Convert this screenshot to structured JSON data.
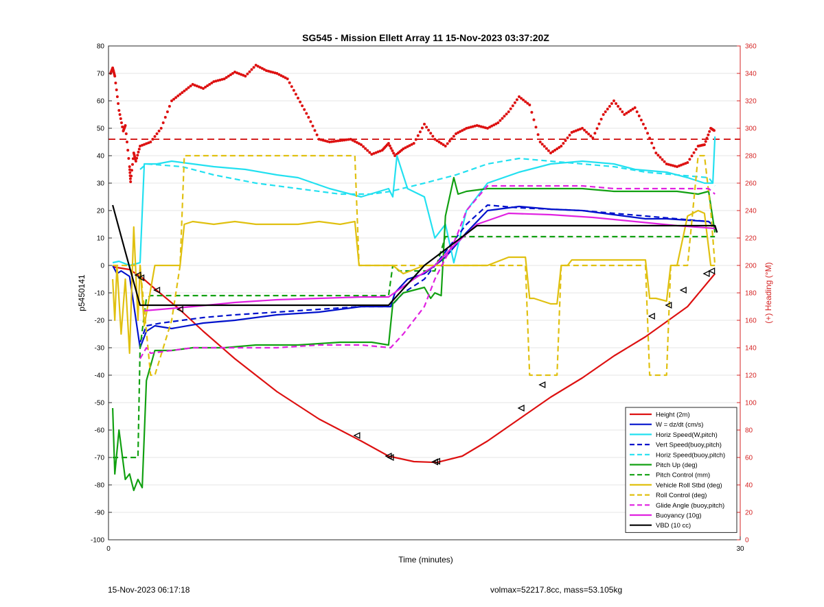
{
  "footer": {
    "left": "15-Nov-2023 06:17:18",
    "right": "volmax=52217.8cc, mass=53.105kg"
  },
  "colors": {
    "height": "#dd1111",
    "w": "#0011cc",
    "horiz": "#22e0f0",
    "pitch": "#11a011",
    "roll": "#e0c010",
    "glide": "#e020e0",
    "vbd": "#000000",
    "heading_axis": "#d42020"
  },
  "chart_data": {
    "type": "line",
    "title": "SG545 - Mission Ellett Array 11 15-Nov-2023 03:37:20Z",
    "xlabel": "Time (minutes)",
    "ylabel": "p5450141",
    "y2label": "(+) Heading (°M)",
    "xlim": [
      0,
      30
    ],
    "ylim": [
      -100,
      80
    ],
    "y2lim": [
      0,
      360
    ],
    "xticks": [
      0,
      30
    ],
    "yticks": [
      -100,
      -90,
      -80,
      -70,
      -60,
      -50,
      -40,
      -30,
      -20,
      -10,
      0,
      10,
      20,
      30,
      40,
      50,
      60,
      70,
      80
    ],
    "y2ticks": [
      0,
      20,
      40,
      60,
      80,
      100,
      120,
      140,
      160,
      180,
      200,
      220,
      240,
      260,
      280,
      300,
      320,
      340,
      360
    ],
    "grid": true,
    "legend_position": "bottom-right",
    "series": [
      {
        "name": "Height (2m)",
        "key": "height",
        "style": "solid",
        "x": [
          0.2,
          1.0,
          1.6,
          2.2,
          3.3,
          4.5,
          6.0,
          8.0,
          10.0,
          12.0,
          13.3,
          14.5,
          15.6,
          16.8,
          18.0,
          19.5,
          21.0,
          22.5,
          24.0,
          25.5,
          26.5,
          27.5,
          28.8
        ],
        "y": [
          -0.5,
          -1.5,
          -4.5,
          -8.5,
          -15.5,
          -24,
          -34,
          -46,
          -56,
          -64,
          -69.5,
          -71.5,
          -71.8,
          -69.5,
          -64,
          -56,
          -48,
          -41,
          -33,
          -26,
          -20.5,
          -15,
          -3
        ]
      },
      {
        "name": "W = dz/dt (cm/s)",
        "key": "w",
        "style": "solid",
        "x": [
          0.2,
          0.4,
          0.6,
          1.0,
          1.5,
          1.8,
          2.2,
          3.0,
          4.5,
          6.0,
          8.0,
          10.0,
          11.0,
          12.0,
          13.4,
          13.6,
          14.2,
          15.0,
          16.0,
          17.0,
          18.0,
          19.5,
          21.0,
          22.5,
          24.0,
          25.5,
          26.5,
          27.5,
          28.5,
          28.8
        ],
        "y": [
          0,
          -3,
          -2,
          -4,
          -30,
          -24,
          -22,
          -23,
          -21,
          -20,
          -18,
          -17,
          -16,
          -15,
          -15,
          -10,
          -5,
          -3,
          3,
          12,
          20,
          21.5,
          20.5,
          20,
          18.5,
          17,
          17,
          16.5,
          16,
          14
        ]
      },
      {
        "name": "Horiz Speed(W,pitch)",
        "key": "horiz",
        "style": "solid",
        "x": [
          0.2,
          0.5,
          1.0,
          1.5,
          1.7,
          2.3,
          3.0,
          4.0,
          5.0,
          6.5,
          8.0,
          9.0,
          10.5,
          11.5,
          12.0,
          13.3,
          13.5,
          13.7,
          14.2,
          15.0,
          15.5,
          16.0,
          16.4,
          17.0,
          18.0,
          19.5,
          21.0,
          22.5,
          24.0,
          25.0,
          26.5,
          27.5,
          28.3,
          28.7,
          28.8
        ],
        "y": [
          1,
          1.5,
          0,
          1,
          37,
          37,
          38,
          37,
          36,
          35,
          33,
          32,
          28,
          26,
          25,
          28,
          25,
          40,
          28,
          25,
          10,
          15,
          1,
          20,
          30,
          34,
          37,
          38,
          37,
          35,
          34,
          32,
          30,
          30,
          47
        ]
      },
      {
        "name": "Vert Speed(buoy,pitch)",
        "key": "w",
        "style": "dash",
        "x": [
          1.5,
          1.8,
          2.5,
          3.5,
          4.5,
          6.0,
          8.0,
          10.0,
          12.0,
          13.4,
          14.0,
          15.0,
          16.0,
          17.0,
          18.0,
          19.5,
          21.0,
          22.5,
          24.0,
          25.5,
          27.0,
          28.5,
          28.8
        ],
        "y": [
          -28,
          -22,
          -21,
          -20,
          -19,
          -18,
          -17,
          -16,
          -15,
          -15,
          -10,
          -5,
          5,
          15,
          22,
          21,
          20.5,
          20,
          19,
          18,
          17,
          16,
          14
        ]
      },
      {
        "name": "Horiz Speed(buoy,pitch)",
        "key": "horiz",
        "style": "dash",
        "x": [
          1.5,
          1.8,
          3.5,
          5.0,
          7.0,
          9.0,
          11.0,
          12.5,
          13.4,
          15.0,
          16.5,
          18.0,
          19.5,
          21.0,
          22.5,
          24.0,
          25.5,
          27.0,
          28.5,
          28.8
        ],
        "y": [
          35,
          37,
          36,
          33,
          30,
          28,
          26,
          26,
          27,
          30,
          33,
          37,
          39,
          38,
          37,
          36,
          34,
          33,
          32,
          29
        ]
      },
      {
        "name": "Pitch Up (deg)",
        "key": "pitch",
        "style": "solid",
        "x": [
          0.2,
          0.3,
          0.5,
          0.8,
          1.0,
          1.2,
          1.4,
          1.6,
          1.8,
          2.2,
          3.0,
          4.0,
          5.5,
          7.0,
          9.0,
          11.0,
          12.5,
          13.3,
          13.5,
          14.0,
          15.0,
          15.3,
          15.5,
          15.8,
          16.0,
          16.4,
          16.6,
          17.0,
          18.0,
          19.5,
          21.0,
          22.5,
          24.0,
          25.5,
          27.0,
          28.0,
          28.5,
          28.8
        ],
        "y": [
          -52,
          -76,
          -60,
          -78,
          -76,
          -82,
          -78,
          -81,
          -42,
          -31,
          -31,
          -30,
          -30,
          -29,
          -29,
          -28,
          -28,
          -29,
          -14,
          -10,
          -8,
          -12,
          -10,
          -11,
          18,
          32,
          26,
          27,
          28,
          28,
          28,
          28,
          27,
          27,
          27,
          26,
          27,
          12
        ]
      },
      {
        "name": "Pitch Control (mm)",
        "key": "pitch",
        "style": "dash",
        "x": [
          0.2,
          1.4,
          1.5,
          1.8,
          2.0,
          13.3,
          13.5,
          13.8,
          15.5,
          16.0,
          16.4,
          19.0,
          22.0,
          25.0,
          28.0,
          28.8
        ],
        "y": [
          -70,
          -70,
          -30,
          -12,
          -11,
          -11,
          0,
          -2,
          -2,
          10.5,
          10.5,
          10.5,
          10.5,
          10.5,
          10.5,
          10.5
        ]
      },
      {
        "name": "Vehicle Roll Stbd (deg)",
        "key": "roll",
        "style": "solid",
        "x": [
          0.2,
          0.3,
          0.4,
          0.6,
          0.8,
          1.0,
          1.2,
          1.4,
          1.5,
          1.7,
          2.2,
          2.5,
          3.0,
          3.4,
          3.6,
          4.0,
          5.0,
          6.0,
          7.0,
          8.0,
          9.0,
          10.0,
          11.0,
          11.7,
          11.9,
          12.5,
          13.5,
          14.0,
          15.0,
          16.0,
          17.0,
          18.0,
          19.0,
          19.8,
          20.0,
          20.2,
          21.0,
          21.3,
          21.5,
          21.8,
          22.0,
          22.5,
          23.0,
          24.0,
          25.0,
          25.5,
          25.7,
          26.0,
          26.5,
          26.7,
          27.0,
          27.5,
          28.0,
          28.3,
          28.6,
          28.8
        ],
        "y": [
          -5,
          -20,
          0,
          -25,
          -5,
          -32,
          14,
          -20,
          0,
          -22,
          0,
          0,
          0,
          0,
          15,
          16,
          15,
          16,
          15,
          15,
          15,
          16,
          15,
          16,
          0,
          0,
          0,
          -3,
          0,
          0,
          0,
          0,
          3,
          3,
          -12,
          -12,
          -14,
          -14,
          0,
          0,
          2,
          2,
          2,
          2,
          2,
          2,
          -12,
          -12,
          -13,
          0,
          0,
          18,
          20,
          19,
          0,
          0
        ]
      },
      {
        "name": "Roll Control (deg)",
        "key": "roll",
        "style": "dash",
        "x": [
          0.2,
          1.0,
          1.5,
          2.0,
          2.2,
          3.0,
          3.4,
          3.6,
          5.0,
          8.0,
          11.0,
          11.7,
          11.9,
          12.5,
          13.5,
          14.0,
          15.0,
          16.0,
          17.0,
          18.0,
          19.0,
          19.8,
          20.0,
          20.2,
          21.0,
          21.3,
          21.5,
          21.8,
          22.0,
          22.5,
          23.0,
          24.0,
          25.0,
          25.5,
          25.7,
          26.0,
          26.5,
          26.7,
          27.0,
          27.5,
          28.0,
          28.3,
          28.6,
          28.8
        ],
        "y": [
          0,
          0,
          0,
          -40,
          -40,
          -20,
          0,
          40,
          40,
          40,
          40,
          40,
          0,
          0,
          0,
          0,
          0,
          0,
          0,
          0,
          0,
          0,
          -40,
          -40,
          -40,
          -40,
          0,
          0,
          0,
          0,
          0,
          0,
          0,
          0,
          -40,
          -40,
          -40,
          0,
          0,
          0,
          40,
          40,
          20,
          0
        ]
      },
      {
        "name": "Glide Angle (buoy,pitch)",
        "key": "glide",
        "style": "dash",
        "x": [
          1.5,
          1.8,
          2.0,
          3.0,
          4.0,
          6.0,
          8.0,
          10.0,
          12.0,
          13.4,
          14.0,
          15.0,
          15.5,
          16.5,
          17.0,
          18.0,
          19.5,
          21.0,
          22.5,
          24.0,
          25.5,
          27.0,
          28.5,
          28.8
        ],
        "y": [
          -34,
          -30,
          -32,
          -31,
          -30,
          -30,
          -30,
          -29,
          -29,
          -30,
          -25,
          -15,
          -5,
          10,
          20,
          29,
          29,
          29,
          29,
          28,
          28,
          28,
          28,
          26
        ]
      },
      {
        "name": "Buoyancy (10g)",
        "key": "glide",
        "style": "solid",
        "x": [
          1.7,
          2.5,
          4.0,
          6.0,
          8.0,
          10.0,
          12.0,
          13.3,
          14.5,
          15.5,
          16.5,
          17.5,
          19.0,
          21.0,
          23.0,
          25.0,
          27.0,
          28.8
        ],
        "y": [
          -16.5,
          -16,
          -15,
          -13.5,
          -12.5,
          -12,
          -11.5,
          -11.5,
          -5,
          0,
          8,
          15,
          19,
          18.5,
          17.5,
          16,
          14.5,
          13.5
        ]
      },
      {
        "name": "VBD (10 cc)",
        "key": "vbd",
        "style": "solid",
        "x": [
          0.2,
          0.8,
          1.5,
          3.0,
          5.0,
          8.0,
          11.0,
          13.3,
          15.0,
          17.5,
          20.0,
          23.0,
          26.0,
          28.8,
          28.9
        ],
        "y": [
          22,
          5,
          -14.5,
          -14.5,
          -14.5,
          -14.5,
          -14.5,
          -14.5,
          0,
          14.5,
          14.5,
          14.5,
          14.5,
          14.5,
          12
        ]
      }
    ],
    "triangle_markers": {
      "x": [
        1.4,
        1.55,
        2.3,
        3.4,
        11.8,
        13.3,
        13.4,
        15.5,
        15.6,
        19.6,
        20.6,
        25.8,
        26.6,
        27.3,
        28.4,
        28.65
      ],
      "y": [
        -3.5,
        -4.5,
        -9,
        -16,
        -62,
        -69.5,
        -70,
        -71.6,
        -71.4,
        -52,
        -43.5,
        -18.5,
        -14.5,
        -9,
        -3,
        -2
      ]
    },
    "heading": {
      "name": "Heading",
      "reference_line": 292,
      "x": [
        0.1,
        0.2,
        0.3,
        0.5,
        0.7,
        0.8,
        1.0,
        1.05,
        1.2,
        1.3,
        1.5,
        2.0,
        2.5,
        3.0,
        3.5,
        4.0,
        4.5,
        5.0,
        5.5,
        6.0,
        6.5,
        7.0,
        7.5,
        8.0,
        8.5,
        9.0,
        9.5,
        10.0,
        10.5,
        11.0,
        11.5,
        12.0,
        12.5,
        13.0,
        13.3,
        13.6,
        14.0,
        14.5,
        15.0,
        15.5,
        16.0,
        16.5,
        17.0,
        17.5,
        18.0,
        18.5,
        19.0,
        19.5,
        20.0,
        20.5,
        21.0,
        21.5,
        22.0,
        22.5,
        23.0,
        23.5,
        24.0,
        24.5,
        25.0,
        25.5,
        26.0,
        26.5,
        27.0,
        27.5,
        28.0,
        28.3,
        28.6,
        28.8
      ],
      "y": [
        340,
        344,
        338,
        313,
        298,
        302,
        272,
        261,
        282,
        276,
        287,
        290,
        300,
        320,
        326,
        332,
        329,
        334,
        336,
        341,
        338,
        346,
        342,
        340,
        336,
        322,
        308,
        292,
        290,
        291,
        292,
        288,
        281,
        284,
        289,
        280,
        285,
        289,
        303,
        292,
        287,
        296,
        300,
        302,
        300,
        304,
        312,
        323,
        317,
        290,
        282,
        287,
        297,
        300,
        293,
        310,
        320,
        310,
        315,
        300,
        282,
        274,
        272,
        275,
        287,
        288,
        300,
        298
      ]
    }
  }
}
